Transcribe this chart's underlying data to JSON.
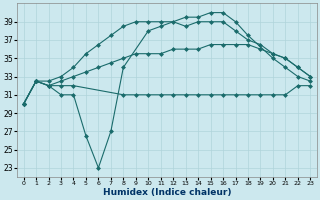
{
  "xlabel": "Humidex (Indice chaleur)",
  "bg_color": "#cce8ee",
  "line_color": "#1a6b6b",
  "grid_color": "#b0d4db",
  "ylim": [
    22,
    41
  ],
  "yticks": [
    23,
    25,
    27,
    29,
    31,
    33,
    35,
    37,
    39
  ],
  "xlim": [
    -0.5,
    23.5
  ],
  "xticks": [
    0,
    1,
    2,
    3,
    4,
    5,
    6,
    7,
    8,
    9,
    10,
    11,
    12,
    13,
    14,
    15,
    16,
    17,
    18,
    19,
    20,
    21,
    22,
    23
  ],
  "line_jagged": {
    "x": [
      0,
      1,
      2,
      3,
      4,
      5,
      6,
      7,
      8,
      10,
      11,
      13,
      14,
      15,
      16,
      17,
      18,
      20,
      21,
      22,
      23
    ],
    "y": [
      30,
      32.5,
      32,
      31,
      31,
      26.5,
      23,
      27,
      34,
      38,
      38.5,
      39.5,
      39.5,
      40,
      40,
      39,
      37.5,
      35,
      34,
      33,
      32.5
    ]
  },
  "line_upper": {
    "x": [
      0,
      1,
      2,
      3,
      4,
      5,
      6,
      7,
      8,
      9,
      10,
      11,
      12,
      13,
      14,
      15,
      16,
      17,
      18,
      19,
      20,
      21,
      22,
      23
    ],
    "y": [
      30,
      32.5,
      32.5,
      33,
      34,
      35.5,
      36.5,
      37.5,
      38.5,
      39,
      39,
      39,
      39,
      38.5,
      39,
      39,
      39,
      38,
      37,
      36.5,
      35.5,
      35,
      34,
      33
    ]
  },
  "line_mid": {
    "x": [
      0,
      1,
      2,
      3,
      4,
      5,
      6,
      7,
      8,
      9,
      10,
      11,
      12,
      13,
      14,
      15,
      16,
      17,
      18,
      19,
      20,
      21,
      22,
      23
    ],
    "y": [
      30,
      32.5,
      32,
      32.5,
      33,
      33.5,
      34,
      34.5,
      35,
      35.5,
      35.5,
      35.5,
      36,
      36,
      36,
      36.5,
      36.5,
      36.5,
      36.5,
      36,
      35.5,
      35,
      34,
      33
    ]
  },
  "line_flat": {
    "x": [
      0,
      1,
      2,
      3,
      4,
      8,
      9,
      10,
      11,
      12,
      13,
      14,
      15,
      16,
      17,
      18,
      19,
      20,
      21,
      22,
      23
    ],
    "y": [
      30,
      32.5,
      32,
      32,
      32,
      31,
      31,
      31,
      31,
      31,
      31,
      31,
      31,
      31,
      31,
      31,
      31,
      31,
      31,
      32,
      32
    ]
  },
  "lw": 0.8,
  "ms": 2.5
}
